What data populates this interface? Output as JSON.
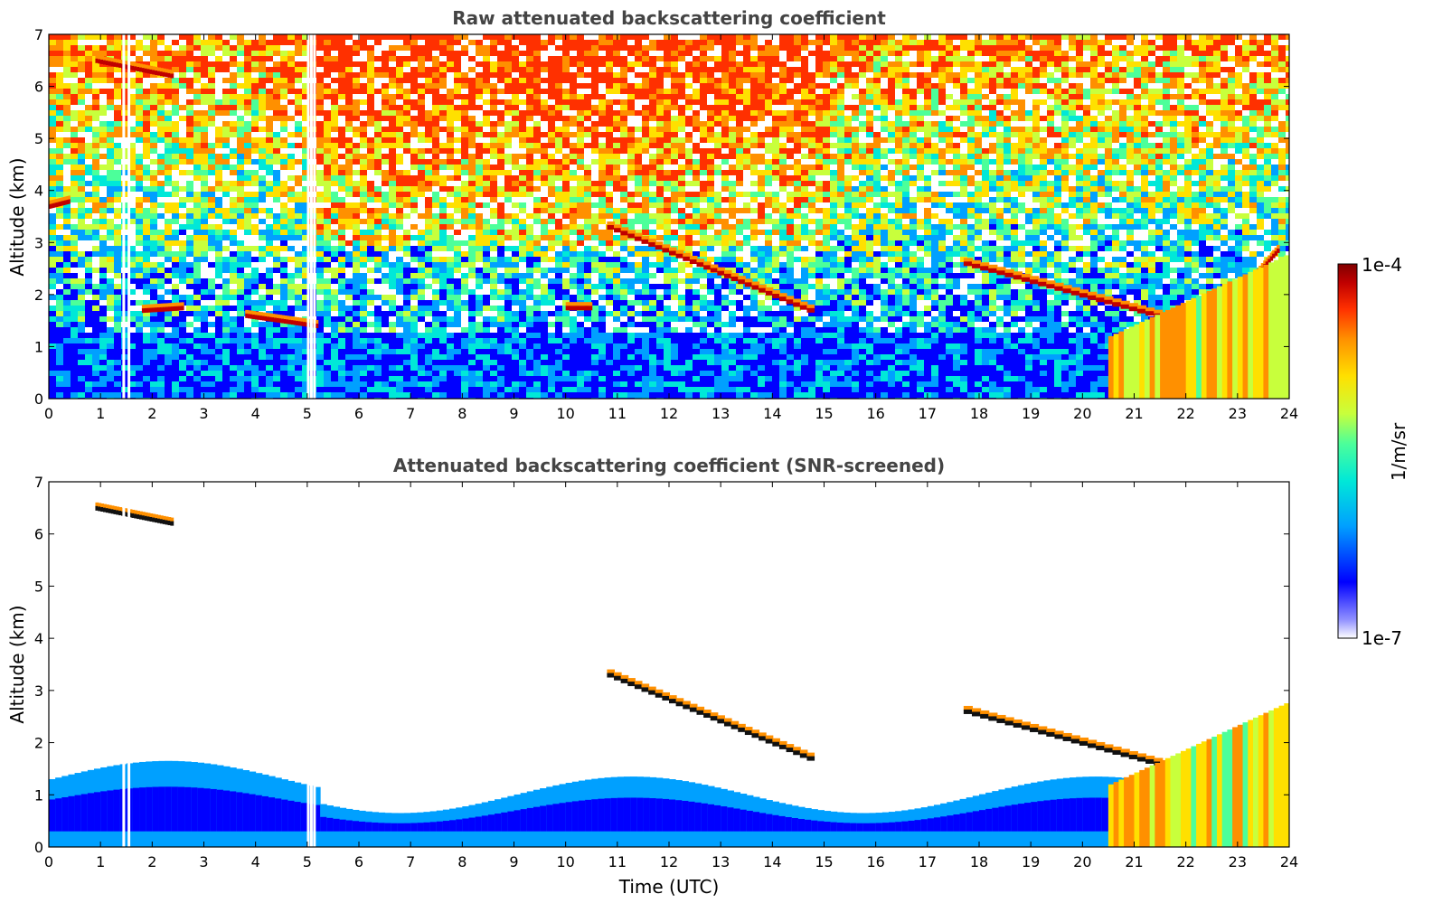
{
  "chart_data": [
    {
      "type": "heatmap",
      "title": "Raw attenuated backscattering coefficient",
      "xlabel": "",
      "ylabel": "Altitude (km)",
      "xlim": [
        0,
        24
      ],
      "ylim": [
        0,
        7
      ],
      "x_ticks": [
        "0",
        "1",
        "2",
        "3",
        "4",
        "5",
        "6",
        "7",
        "8",
        "9",
        "10",
        "11",
        "12",
        "13",
        "14",
        "15",
        "16",
        "17",
        "18",
        "19",
        "20",
        "21",
        "22",
        "23",
        "24"
      ],
      "y_ticks": [
        "0",
        "1",
        "2",
        "3",
        "4",
        "5",
        "6",
        "7"
      ],
      "features": [
        {
          "kind": "boundary_layer",
          "x_range": [
            0,
            24
          ],
          "altitude_top": 1.3,
          "level": "low"
        },
        {
          "kind": "cloud_layer",
          "x": [
            0.9,
            2.4
          ],
          "altitude": [
            6.5,
            6.2
          ],
          "level": "high"
        },
        {
          "kind": "cloud_layer",
          "x": [
            0,
            0.4
          ],
          "altitude": [
            3.7,
            3.8
          ],
          "level": "high"
        },
        {
          "kind": "cloud_layer",
          "x": [
            1.8,
            2.6
          ],
          "altitude": [
            1.7,
            1.75
          ],
          "level": "high"
        },
        {
          "kind": "cloud_layer",
          "x": [
            3.8,
            5.2
          ],
          "altitude": [
            1.6,
            1.4
          ],
          "level": "high"
        },
        {
          "kind": "cloud_layer",
          "x": [
            10,
            10.5
          ],
          "altitude": [
            1.75,
            1.75
          ],
          "level": "high"
        },
        {
          "kind": "cloud_layer",
          "x": [
            10.8,
            14.8
          ],
          "altitude": [
            3.3,
            1.65
          ],
          "level": "high"
        },
        {
          "kind": "cloud_layer",
          "x": [
            17.7,
            22.5
          ],
          "altitude": [
            2.6,
            1.3
          ],
          "level": "high"
        },
        {
          "kind": "cloud_layer",
          "x": [
            22.5,
            23.8
          ],
          "altitude": [
            1.4,
            2.9
          ],
          "level": "high"
        },
        {
          "kind": "aerosol_plume",
          "x": [
            20.5,
            24
          ],
          "altitude": [
            0,
            2.8
          ],
          "level": "mid-high"
        },
        {
          "kind": "noise",
          "x_range": [
            0,
            24
          ],
          "altitude": [
            1.3,
            7
          ],
          "level": "mixed"
        }
      ],
      "data_gaps": [
        1.45,
        1.55,
        5.02,
        5.08,
        5.14
      ]
    },
    {
      "type": "heatmap",
      "title": "Attenuated backscattering coefficient (SNR-screened)",
      "xlabel": "Time (UTC)",
      "ylabel": "Altitude (km)",
      "xlim": [
        0,
        24
      ],
      "ylim": [
        0,
        7
      ],
      "x_ticks": [
        "0",
        "1",
        "2",
        "3",
        "4",
        "5",
        "6",
        "7",
        "8",
        "9",
        "10",
        "11",
        "12",
        "13",
        "14",
        "15",
        "16",
        "17",
        "18",
        "19",
        "20",
        "21",
        "22",
        "23",
        "24"
      ],
      "y_ticks": [
        "0",
        "1",
        "2",
        "3",
        "4",
        "5",
        "6",
        "7"
      ],
      "features": [
        {
          "kind": "boundary_layer",
          "x_range": [
            0,
            24
          ],
          "altitude_top": 1.3,
          "level": "low"
        },
        {
          "kind": "cloud_layer",
          "x": [
            0.9,
            2.4
          ],
          "altitude": [
            6.5,
            6.2
          ],
          "level": "saturated"
        },
        {
          "kind": "cloud_layer",
          "x": [
            10.8,
            14.8
          ],
          "altitude": [
            3.3,
            1.65
          ],
          "level": "saturated"
        },
        {
          "kind": "cloud_layer",
          "x": [
            17.7,
            22.5
          ],
          "altitude": [
            2.6,
            1.3
          ],
          "level": "saturated"
        },
        {
          "kind": "aerosol_plume",
          "x": [
            20.5,
            24
          ],
          "altitude": [
            0,
            2.8
          ],
          "level": "mid-high"
        }
      ],
      "data_gaps": [
        1.45,
        1.55,
        5.02,
        5.08,
        5.14
      ]
    }
  ],
  "colorbar": {
    "label": "1/m/sr",
    "max_label": "1e-4",
    "min_label": "1e-7",
    "colors": [
      "#ffffff",
      "#8f8fff",
      "#0000ff",
      "#00a0ff",
      "#00e8d8",
      "#4cff9a",
      "#c8ff3c",
      "#ffe000",
      "#ff9000",
      "#ff3000",
      "#c00000",
      "#800000"
    ]
  }
}
